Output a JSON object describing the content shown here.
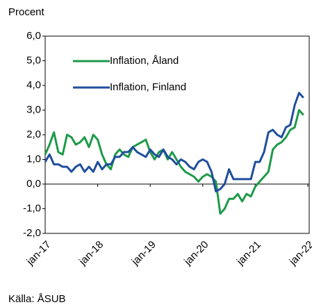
{
  "chart_data": {
    "type": "line",
    "y_label": "Procent",
    "source": "Källa: ÅSUB",
    "categories": [
      "jan-17",
      null,
      null,
      null,
      null,
      null,
      null,
      null,
      null,
      null,
      null,
      null,
      "jan-18",
      null,
      null,
      null,
      null,
      null,
      null,
      null,
      null,
      null,
      null,
      null,
      "jan-19",
      null,
      null,
      null,
      null,
      null,
      null,
      null,
      null,
      null,
      null,
      null,
      "jan-20",
      null,
      null,
      null,
      null,
      null,
      null,
      null,
      null,
      null,
      null,
      null,
      "jan-21",
      null,
      null,
      null,
      null,
      null,
      null,
      null,
      null,
      null,
      null,
      null,
      "jan-22"
    ],
    "series": [
      {
        "name": "Inflation, Åland",
        "color": "#1e9a48",
        "values": [
          1.2,
          1.6,
          2.1,
          1.3,
          1.2,
          2.0,
          1.9,
          1.6,
          1.7,
          1.9,
          1.5,
          2.0,
          1.8,
          1.2,
          0.8,
          0.6,
          1.2,
          1.4,
          1.2,
          1.1,
          1.5,
          1.6,
          1.7,
          1.8,
          1.3,
          1.0,
          1.3,
          1.4,
          1.0,
          1.3,
          1.0,
          0.7,
          0.5,
          0.4,
          0.3,
          0.1,
          0.3,
          0.4,
          0.3,
          0.1,
          -1.2,
          -1.0,
          -0.6,
          -0.6,
          -0.4,
          -0.7,
          -0.4,
          -0.5,
          -0.1,
          0.1,
          0.3,
          0.5,
          1.4,
          1.6,
          1.7,
          1.9,
          2.2,
          2.3,
          3.0,
          2.8,
          null
        ]
      },
      {
        "name": "Inflation, Finland",
        "color": "#1f4e9c",
        "values": [
          0.9,
          1.2,
          0.8,
          0.8,
          0.7,
          0.7,
          0.5,
          0.7,
          0.8,
          0.5,
          0.7,
          0.5,
          0.9,
          0.6,
          0.8,
          0.8,
          1.1,
          1.1,
          1.3,
          1.3,
          1.5,
          1.3,
          1.2,
          1.1,
          1.4,
          1.2,
          1.1,
          1.4,
          1.1,
          1.0,
          0.8,
          1.0,
          0.9,
          0.7,
          0.6,
          0.9,
          1.0,
          0.9,
          0.5,
          -0.3,
          -0.2,
          0.0,
          0.6,
          0.2,
          0.2,
          0.2,
          0.2,
          0.2,
          0.9,
          0.9,
          1.3,
          2.1,
          2.2,
          2.0,
          1.9,
          2.3,
          2.4,
          3.2,
          3.7,
          3.5,
          null
        ]
      }
    ],
    "ylim": [
      -2,
      6
    ],
    "yticks": [
      {
        "value": -2,
        "label": "-2,0"
      },
      {
        "value": -1,
        "label": "-1,0"
      },
      {
        "value": 0,
        "label": "0,0"
      },
      {
        "value": 1,
        "label": "1,0"
      },
      {
        "value": 2,
        "label": "2,0"
      },
      {
        "value": 3,
        "label": "3,0"
      },
      {
        "value": 4,
        "label": "4,0"
      },
      {
        "value": 5,
        "label": "5,0"
      },
      {
        "value": 6,
        "label": "6,0"
      }
    ],
    "grid": false
  }
}
